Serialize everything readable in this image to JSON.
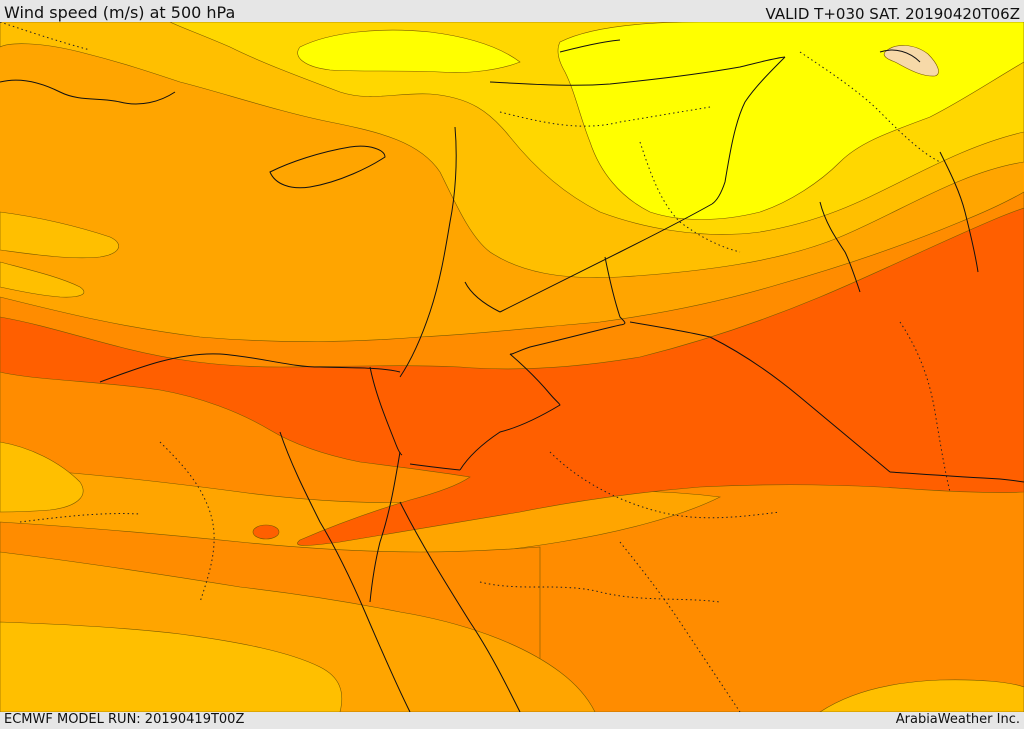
{
  "header": {
    "title": "Wind speed (m/s) at 500 hPa",
    "valid": "VALID T+030 SAT. 20190420T06Z"
  },
  "footer": {
    "model_run": "ECMWF MODEL RUN: 20190419T00Z",
    "credit": "ArabiaWeather Inc."
  },
  "palette": {
    "lightest": "#f7d9a8",
    "yellow": "#ffff00",
    "yellow_orange": "#ffd700",
    "amber": "#ffbf00",
    "orange_light": "#ffa500",
    "orange": "#ff8c00",
    "orange_dark": "#ff5f00"
  }
}
